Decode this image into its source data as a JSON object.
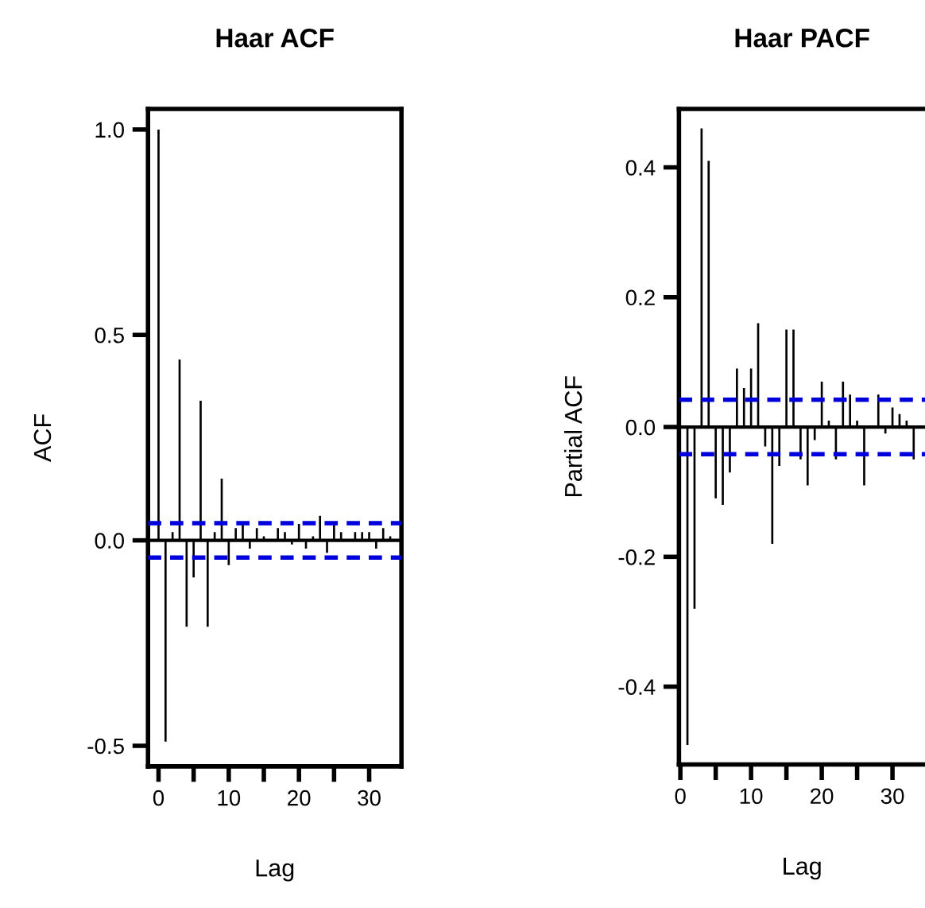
{
  "chart_data": [
    {
      "type": "bar",
      "title": "Haar ACF",
      "xlabel": "Lag",
      "ylabel": "ACF",
      "color": "#000000",
      "x": [
        0,
        1,
        2,
        3,
        4,
        5,
        6,
        7,
        8,
        9,
        10,
        11,
        12,
        13,
        14,
        15,
        16,
        17,
        18,
        19,
        20,
        21,
        22,
        23,
        24,
        25,
        26,
        27,
        28,
        29,
        30,
        31,
        32,
        33
      ],
      "values": [
        1.0,
        -0.49,
        0.02,
        0.44,
        -0.21,
        -0.09,
        0.34,
        -0.21,
        0.02,
        0.15,
        -0.06,
        0.03,
        0.04,
        -0.02,
        0.03,
        0.01,
        0.0,
        0.03,
        0.02,
        -0.01,
        0.04,
        -0.02,
        0.01,
        0.06,
        -0.03,
        0.04,
        0.02,
        0.0,
        0.02,
        0.02,
        0.02,
        -0.02,
        0.03,
        0.01
      ],
      "xlim": [
        -1.5,
        34.6
      ],
      "ylim": [
        -0.55,
        1.05
      ],
      "xticks": [
        0,
        {
          "value": 5,
          "label": null
        },
        10,
        {
          "value": 15,
          "label": null
        },
        20,
        {
          "value": 25,
          "label": null
        },
        30
      ],
      "yticks": [
        {
          "value": -0.5,
          "label": "-0.5"
        },
        {
          "value": 0,
          "label": "0.0"
        },
        {
          "value": 0.5,
          "label": "0.5"
        },
        {
          "value": 1.0,
          "label": "1.0"
        }
      ],
      "ref_lines": [
        {
          "axis": "y",
          "value": 0,
          "color": "#000000",
          "line_style": "solid"
        },
        {
          "axis": "y",
          "value": 0.042,
          "color": "#0000dd",
          "line_style": "dashed"
        },
        {
          "axis": "y",
          "value": -0.042,
          "color": "#0000dd",
          "line_style": "dashed"
        }
      ],
      "grid": false,
      "legend": false
    },
    {
      "type": "bar",
      "title": "Haar PACF",
      "xlabel": "Lag",
      "ylabel": "Partial ACF",
      "color": "#000000",
      "x": [
        1,
        2,
        3,
        4,
        5,
        6,
        7,
        8,
        9,
        10,
        11,
        12,
        13,
        14,
        15,
        16,
        17,
        18,
        19,
        20,
        21,
        22,
        23,
        24,
        25,
        26,
        27,
        28,
        29,
        30,
        31,
        32,
        33
      ],
      "values": [
        -0.49,
        -0.28,
        0.46,
        0.41,
        -0.11,
        -0.12,
        -0.07,
        0.09,
        0.06,
        0.09,
        0.16,
        -0.03,
        -0.18,
        -0.06,
        0.15,
        0.15,
        -0.05,
        -0.09,
        -0.02,
        0.07,
        0.01,
        -0.05,
        0.07,
        0.05,
        0.01,
        -0.09,
        0.0,
        0.05,
        -0.01,
        0.03,
        0.02,
        0.01,
        -0.05
      ],
      "xlim": [
        -0.2,
        34.6
      ],
      "ylim": [
        -0.52,
        0.49
      ],
      "xticks": [
        0,
        {
          "value": 5,
          "label": null
        },
        10,
        {
          "value": 15,
          "label": null
        },
        20,
        {
          "value": 25,
          "label": null
        },
        30
      ],
      "yticks": [
        {
          "value": -0.4,
          "label": "-0.4"
        },
        {
          "value": -0.2,
          "label": "-0.2"
        },
        {
          "value": 0,
          "label": "0.0"
        },
        {
          "value": 0.2,
          "label": "0.2"
        },
        {
          "value": 0.4,
          "label": "0.4"
        }
      ],
      "ref_lines": [
        {
          "axis": "y",
          "value": 0,
          "color": "#000000",
          "line_style": "solid"
        },
        {
          "axis": "y",
          "value": 0.042,
          "color": "#0000dd",
          "line_style": "dashed"
        },
        {
          "axis": "y",
          "value": -0.042,
          "color": "#0000dd",
          "line_style": "dashed"
        }
      ],
      "grid": false,
      "legend": false
    }
  ]
}
